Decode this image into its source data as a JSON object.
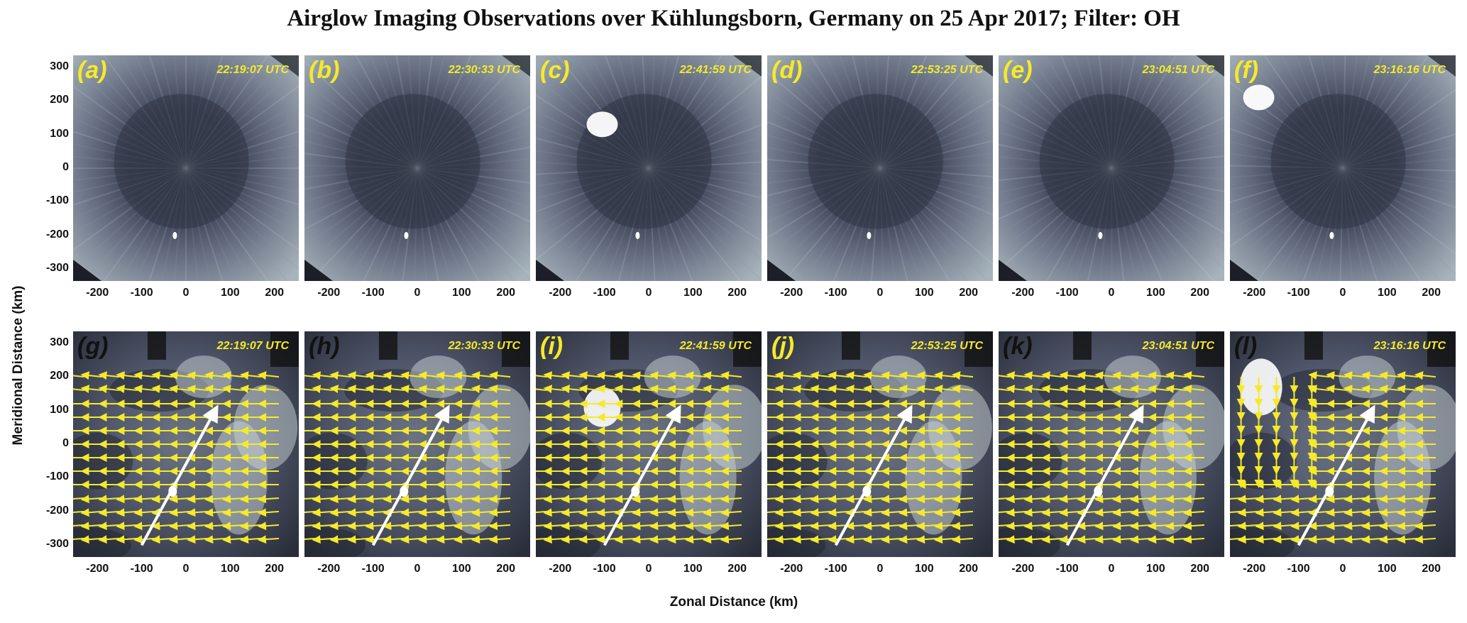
{
  "figure": {
    "title": "Airglow Imaging Observations over Kühlungsborn, Germany on 25 Apr 2017; Filter: OH",
    "ylabel": "Meridional Distance (km)",
    "xlabel": "Zonal Distance (km)",
    "y_ticks": [
      "300",
      "200",
      "100",
      "0",
      "-100",
      "-200",
      "-300"
    ],
    "x_ticks": [
      "-200",
      "-100",
      "0",
      "100",
      "200"
    ]
  },
  "rows": [
    {
      "kind": "raw-image",
      "panels": [
        {
          "label": "(a)",
          "time": "22:19:07 UTC",
          "cloud": false
        },
        {
          "label": "(b)",
          "time": "22:30:33 UTC",
          "cloud": false
        },
        {
          "label": "(c)",
          "time": "22:41:59 UTC",
          "cloud": true
        },
        {
          "label": "(d)",
          "time": "22:53:25 UTC",
          "cloud": false
        },
        {
          "label": "(e)",
          "time": "23:04:51 UTC",
          "cloud": false
        },
        {
          "label": "(f)",
          "time": "23:16:16 UTC",
          "cloud": true
        }
      ]
    },
    {
      "kind": "processed-with-vectors",
      "panels": [
        {
          "label": "(g)",
          "time": "22:19:07 UTC",
          "label_color": "dark"
        },
        {
          "label": "(h)",
          "time": "22:30:33 UTC",
          "label_color": "dark"
        },
        {
          "label": "(i)",
          "time": "22:41:59 UTC",
          "label_color": "yellow"
        },
        {
          "label": "(j)",
          "time": "22:53:25 UTC",
          "label_color": "yellow"
        },
        {
          "label": "(k)",
          "time": "23:04:51 UTC",
          "label_color": "dark"
        },
        {
          "label": "(l)",
          "time": "23:16:16 UTC",
          "label_color": "dark"
        }
      ]
    }
  ],
  "colors": {
    "vector": "#f5ea2a",
    "wave_arrow": "#ffffff",
    "image_tint": "#5a6478",
    "label_yellow": "#f5ea2a"
  }
}
